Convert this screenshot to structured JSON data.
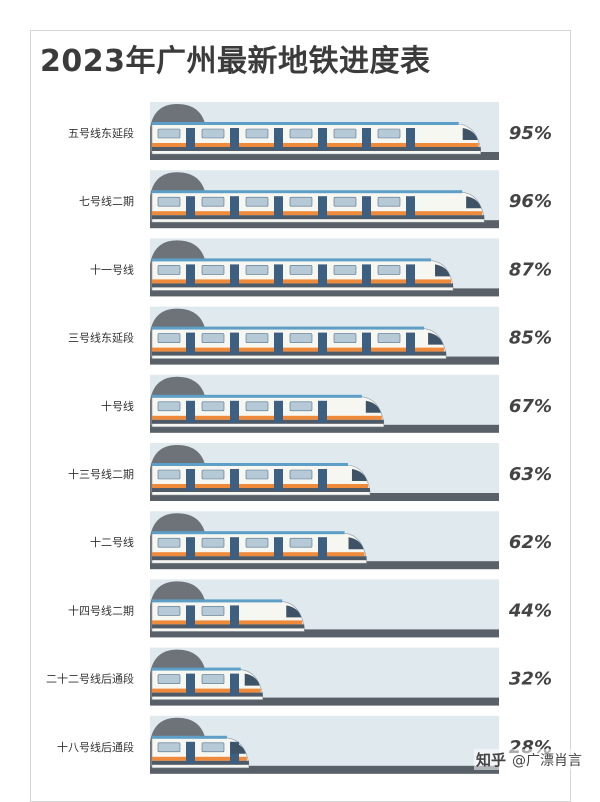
{
  "title": "2023年广州最新地铁进度表",
  "watermark": {
    "logo": "知乎",
    "handle": "@广漂肖言"
  },
  "colors": {
    "track_bg": "#dfe9ee",
    "rail": "#5a6067",
    "tunnel": "#6e737a",
    "train_body": "#f7f7f2",
    "train_roof": "#5d9fc6",
    "stripe_orange": "#ef8a3b",
    "stripe_dark": "#4e5a66",
    "door": "#3d5f82",
    "window": "#b6c9d6"
  },
  "chart_data": {
    "type": "bar",
    "title": "2023年广州最新地铁进度表",
    "categories": [
      "五号线东延段",
      "七号线二期",
      "十一号线",
      "三号线东延段",
      "十号线",
      "十三号线二期",
      "十二号线",
      "十四号线二期",
      "二十二号线后通段",
      "十八号线后通段"
    ],
    "values": [
      95,
      96,
      87,
      85,
      67,
      63,
      62,
      44,
      32,
      28
    ],
    "unit": "%",
    "labels": [
      "95%",
      "96%",
      "87%",
      "85%",
      "67%",
      "63%",
      "62%",
      "44%",
      "32%",
      "28%"
    ],
    "ylim": [
      0,
      100
    ],
    "orientation": "horizontal"
  }
}
